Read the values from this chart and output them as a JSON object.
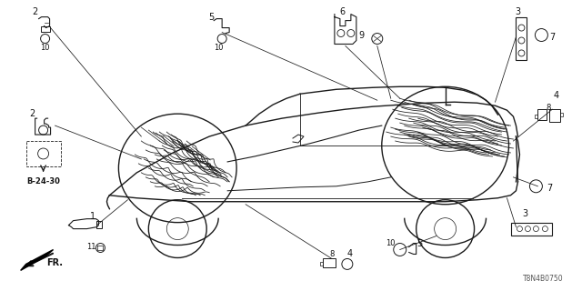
{
  "part_number": "T8N4B0750",
  "background_color": "#ffffff",
  "line_color": "#1a1a1a",
  "label_color": "#111111",
  "fig_width": 6.4,
  "fig_height": 3.2,
  "dpi": 100,
  "ref_label": "B-24-30"
}
